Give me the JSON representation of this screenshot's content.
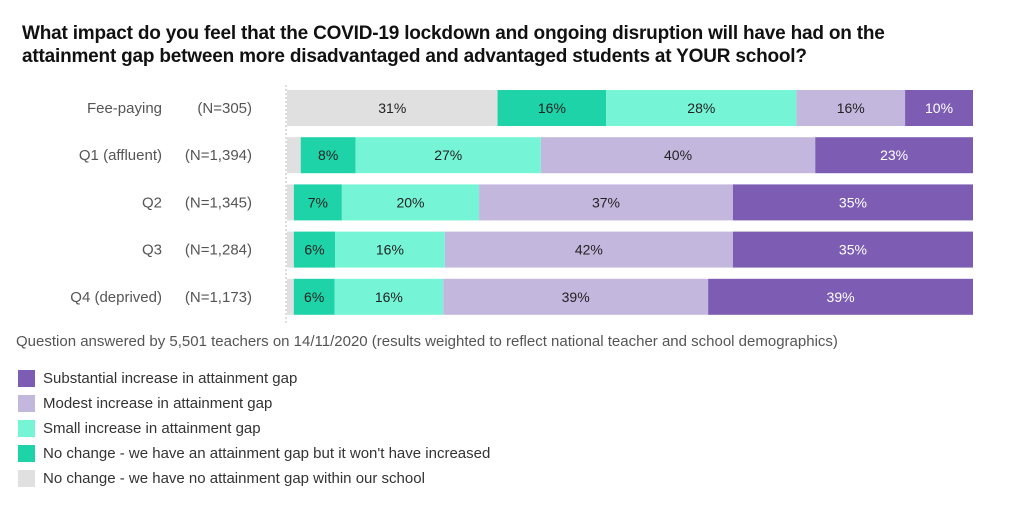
{
  "chart_data": {
    "type": "bar",
    "orientation": "horizontal",
    "stacked": true,
    "title": "What impact do you feel that the COVID-19 lockdown and ongoing disruption will have had on the attainment gap between more disadvantaged and advantaged students at YOUR school?",
    "title_lines": [
      "What impact do you feel that the COVID-19 lockdown and ongoing disruption will have had on the",
      "attainment gap between more disadvantaged and advantaged students at YOUR school?"
    ],
    "categories": [
      "Fee-paying",
      "Q1 (affluent)",
      "Q2",
      "Q3",
      "Q4 (deprived)"
    ],
    "sample_sizes": [
      "(N=305)",
      "(N=1,394)",
      "(N=1,345)",
      "(N=1,284)",
      "(N=1,173)"
    ],
    "series": [
      {
        "name": "No change - we have no attainment gap within our school",
        "color": "#e0e0e0",
        "text_color": "#222222",
        "values": [
          31,
          2,
          1,
          1,
          1
        ],
        "labels": [
          "31%",
          "",
          "",
          "",
          ""
        ]
      },
      {
        "name": "No change - we have an attainment gap but it won't have increased",
        "color": "#1fd3a8",
        "text_color": "#222222",
        "values": [
          16,
          8,
          7,
          6,
          6
        ],
        "labels": [
          "16%",
          "8%",
          "7%",
          "6%",
          "6%"
        ]
      },
      {
        "name": "Small increase in attainment gap",
        "color": "#76f5d6",
        "text_color": "#222222",
        "values": [
          28,
          27,
          20,
          16,
          16
        ],
        "labels": [
          "28%",
          "27%",
          "20%",
          "16%",
          "16%"
        ]
      },
      {
        "name": "Modest increase in attainment gap",
        "color": "#c4b7de",
        "text_color": "#222222",
        "values": [
          16,
          40,
          37,
          42,
          39
        ],
        "labels": [
          "16%",
          "40%",
          "37%",
          "42%",
          "39%"
        ]
      },
      {
        "name": "Substantial increase in attainment gap",
        "color": "#7d5db4",
        "text_color": "#ffffff",
        "values": [
          10,
          23,
          35,
          35,
          39
        ],
        "labels": [
          "10%",
          "23%",
          "35%",
          "35%",
          "39%"
        ]
      }
    ],
    "xlim": [
      0,
      100
    ],
    "xlabel": "",
    "ylabel": "",
    "grid": false,
    "legend_position": "bottom-left"
  },
  "note": "Question answered by 5,501 teachers on 14/11/2020 (results weighted to reflect national teacher and school demographics)",
  "legend": [
    {
      "label": "Substantial increase in attainment gap",
      "color": "#7d5db4"
    },
    {
      "label": "Modest increase in attainment gap",
      "color": "#c4b7de"
    },
    {
      "label": "Small increase in attainment gap",
      "color": "#76f5d6"
    },
    {
      "label": "No change - we have an attainment gap but it won't have increased",
      "color": "#1fd3a8"
    },
    {
      "label": "No change - we have no attainment gap within our school",
      "color": "#e0e0e0"
    }
  ]
}
